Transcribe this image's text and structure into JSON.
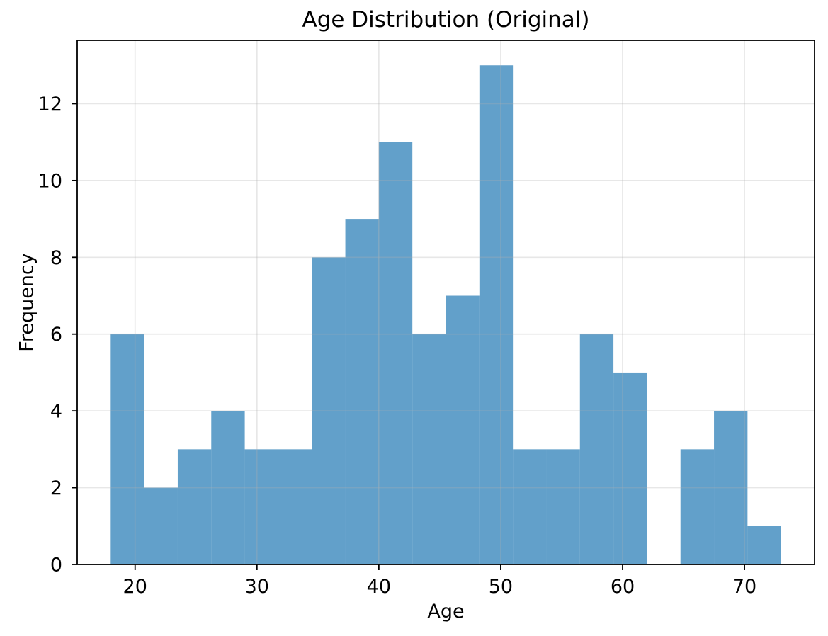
{
  "chart_data": {
    "type": "bar",
    "subtype": "histogram",
    "title": "Age Distribution (Original)",
    "xlabel": "Age",
    "ylabel": "Frequency",
    "bin_edges": [
      18,
      20.75,
      23.5,
      26.25,
      29,
      31.75,
      34.5,
      37.25,
      40,
      42.75,
      45.5,
      48.25,
      51,
      53.75,
      56.5,
      59.25,
      62,
      64.75,
      67.5,
      70.25,
      73
    ],
    "frequencies": [
      6,
      2,
      3,
      4,
      3,
      3,
      8,
      9,
      11,
      6,
      7,
      13,
      3,
      3,
      6,
      5,
      0,
      3,
      4,
      1
    ],
    "total_count": 100,
    "xticks": [
      20,
      30,
      40,
      50,
      60,
      70
    ],
    "yticks": [
      0,
      2,
      4,
      6,
      8,
      10,
      12
    ],
    "xlim": [
      15.25,
      75.75
    ],
    "ylim": [
      0,
      13.65
    ],
    "grid": true,
    "grid_over_bars": true,
    "legend": null,
    "colors": {
      "bar": "#1f77b4",
      "bar_alpha": 0.7,
      "bar_blended_on_white": "#62a0ca",
      "grid": "#b0b0b0",
      "grid_alpha": 0.3,
      "spine": "#000000",
      "text": "#000000",
      "background": "#ffffff"
    }
  }
}
